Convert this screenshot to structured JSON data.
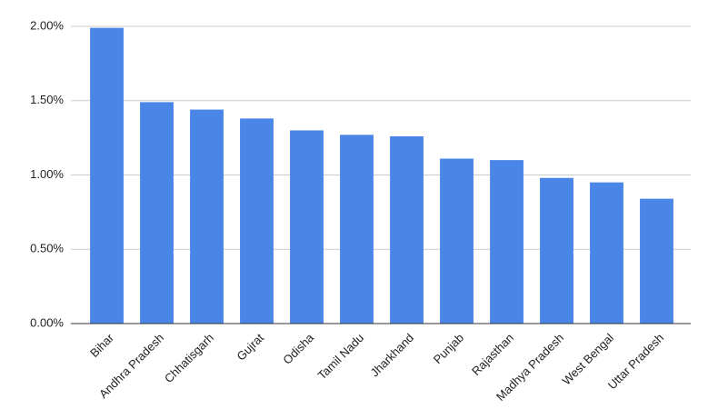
{
  "chart_data": {
    "type": "bar",
    "categories": [
      "Bihar",
      "Andhra Pradesh",
      "Chhatisgarh",
      "Gujrat",
      "Odisha",
      "Tamil Nadu",
      "Jharkhand",
      "Punjab",
      "Rajasthan",
      "Madhya Pradesh",
      "West Bengal",
      "Uttar Pradesh"
    ],
    "values": [
      1.99,
      1.49,
      1.44,
      1.38,
      1.3,
      1.27,
      1.26,
      1.11,
      1.1,
      0.98,
      0.95,
      0.84
    ],
    "color": "#4a86e8",
    "ylim": [
      0,
      2
    ],
    "yticks": [
      {
        "value": 0,
        "label": "0.00%"
      },
      {
        "value": 0.5,
        "label": "0.50%"
      },
      {
        "value": 1,
        "label": "1.00%"
      },
      {
        "value": 1.5,
        "label": "1.50%"
      },
      {
        "value": 2,
        "label": "2.00%"
      }
    ],
    "grid": true
  }
}
